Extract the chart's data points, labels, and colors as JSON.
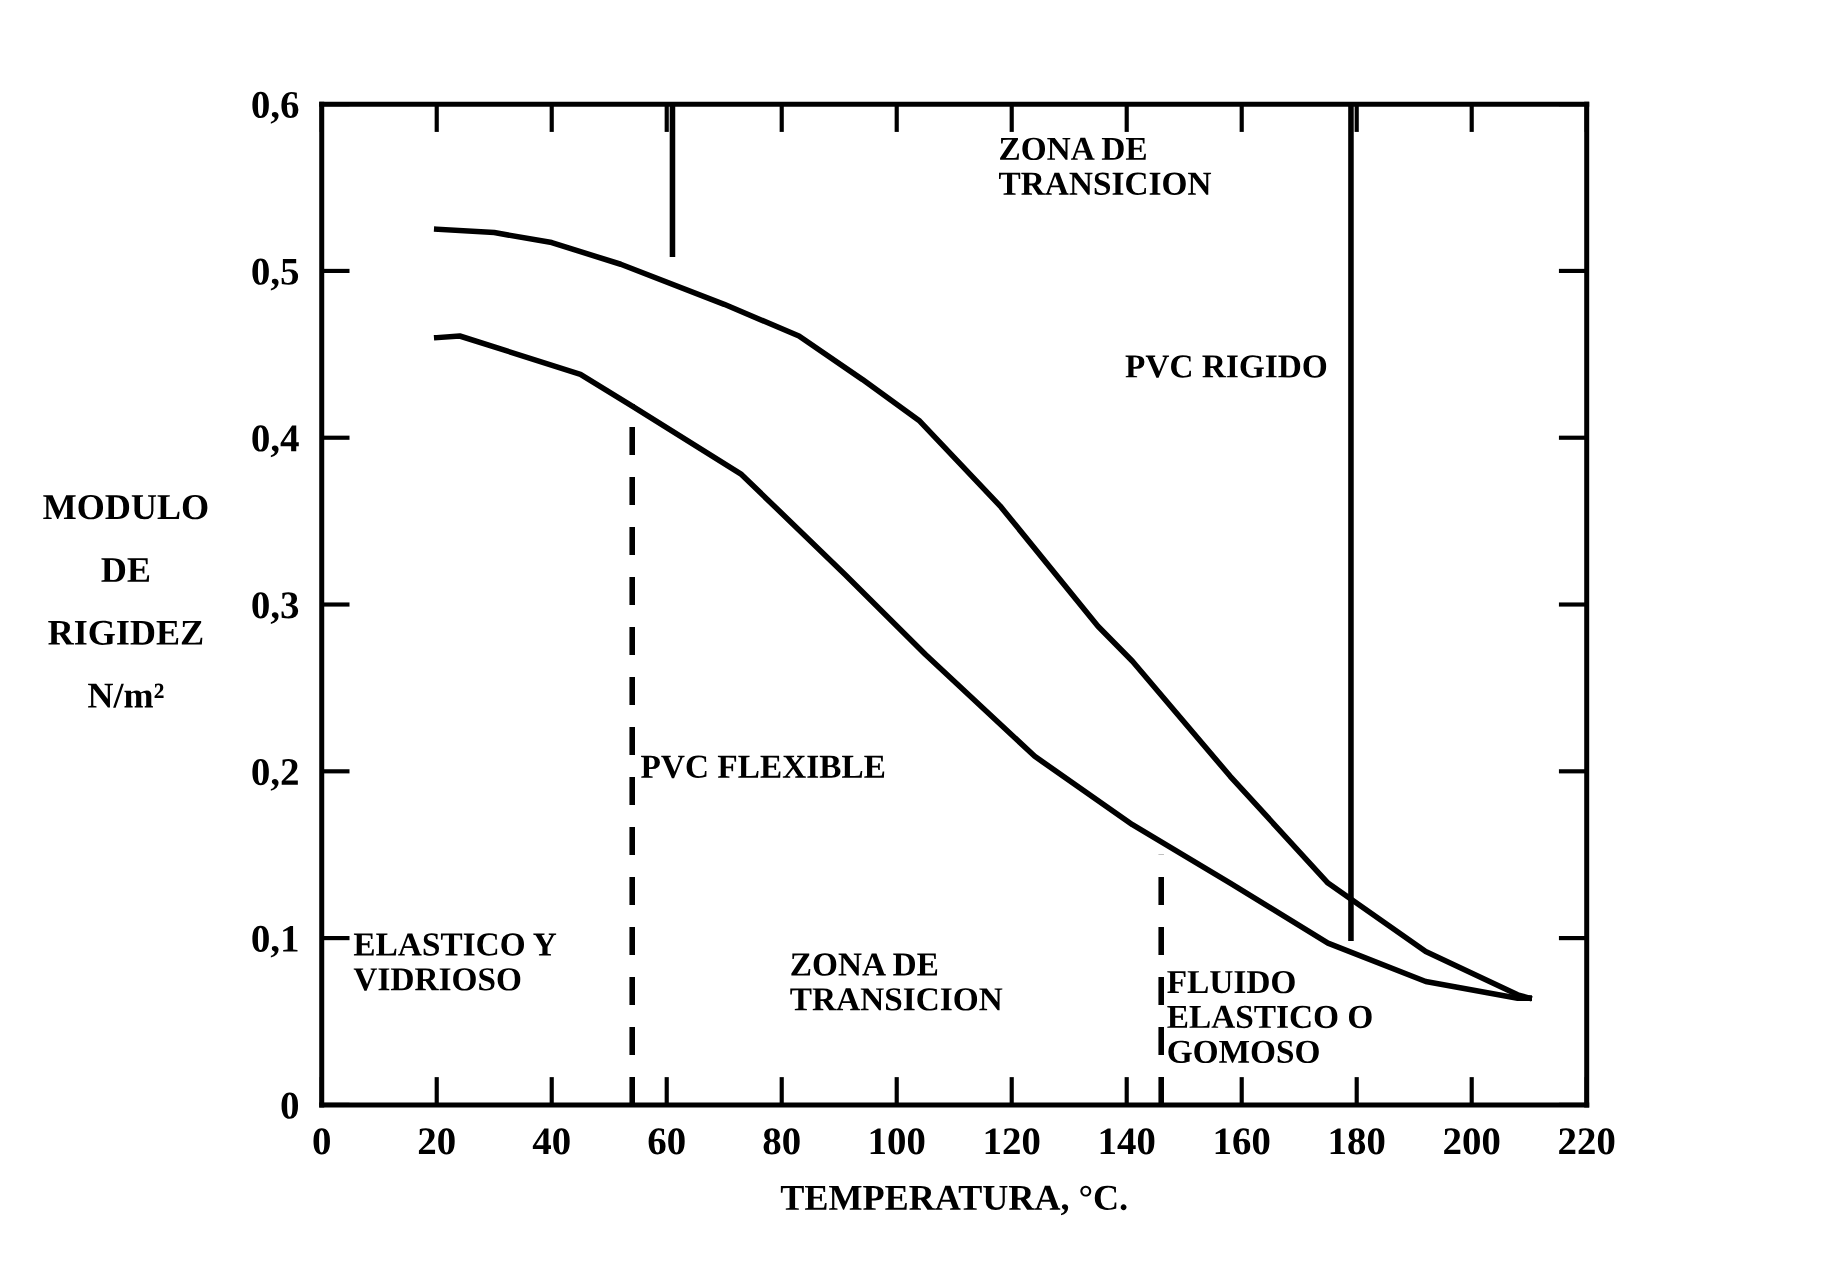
{
  "chart_data": {
    "type": "line",
    "xlabel": "TEMPERATURA, °C.",
    "ylabel": "MODULO\nDE\nRIGIDEZ\nN/m²",
    "xlim": [
      0,
      220
    ],
    "xticks": [
      0,
      20,
      40,
      60,
      80,
      100,
      120,
      140,
      160,
      180,
      200,
      220
    ],
    "ylim": [
      0,
      0.6
    ],
    "yticks": [
      0,
      {
        "value": 0.1,
        "label": "0,1"
      },
      {
        "value": 0.2,
        "label": "0,2"
      },
      {
        "value": 0.3,
        "label": "0,3"
      },
      {
        "value": 0.4,
        "label": "0,4"
      },
      {
        "value": 0.5,
        "label": "0,5"
      },
      {
        "value": 0.6,
        "label": "0,6"
      }
    ],
    "grid": false,
    "marker": "none",
    "series": [
      {
        "color": "#000000",
        "line_style": "solid",
        "x": [
          20,
          30,
          40,
          52,
          70,
          83,
          94,
          104,
          118,
          135,
          141,
          158,
          175,
          192,
          208,
          210
        ],
        "values": [
          0.525,
          0.523,
          0.517,
          0.504,
          0.48,
          0.461,
          0.435,
          0.41,
          0.359,
          0.287,
          0.266,
          0.197,
          0.133,
          0.092,
          0.066,
          0.064
        ]
      },
      {
        "color": "#000000",
        "line_style": "solid",
        "x": [
          20,
          24,
          45,
          54,
          73,
          91,
          105,
          124,
          141,
          158,
          175,
          192,
          208,
          210
        ],
        "values": [
          0.46,
          0.461,
          0.438,
          0.419,
          0.378,
          0.318,
          0.27,
          0.209,
          0.168,
          0.133,
          0.097,
          0.074,
          0.064,
          0.064
        ]
      },
      {
        "color": "#000000",
        "line_style": "dashed",
        "x": [
          54,
          54
        ],
        "values": [
          0,
          0.42
        ]
      },
      {
        "color": "#000000",
        "line_style": "dashed",
        "x": [
          146,
          146
        ],
        "values": [
          0,
          0.15
        ]
      },
      {
        "color": "#000000",
        "line_style": "solid",
        "x": [
          61,
          61
        ],
        "values": [
          0.6,
          0.51
        ]
      },
      {
        "color": "#000000",
        "line_style": "solid",
        "x": [
          179,
          179
        ],
        "values": [
          0.6,
          0.1
        ]
      }
    ],
    "annotations": [
      "ZONA DE\nTRANSICION",
      "PVC RIGIDO",
      "PVC FLEXIBLE",
      "ELASTICO Y\nVIDRIOSO",
      "ZONA DE\nTRANSICION",
      "FLUIDO\nELASTICO O\nGOMOSO"
    ]
  }
}
